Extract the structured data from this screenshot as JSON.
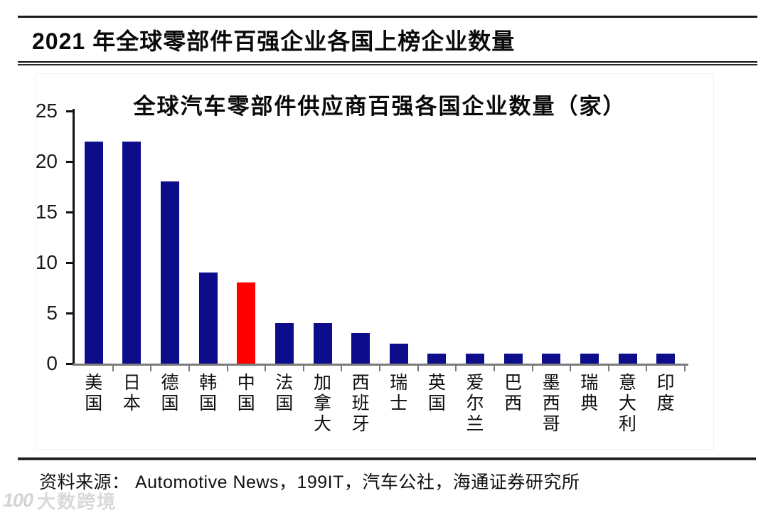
{
  "header": {
    "year": "2021",
    "title": "年全球零部件百强企业各国上榜企业数量"
  },
  "chart_data": {
    "type": "bar",
    "title": "全球汽车零部件供应商百强各国企业数量（家）",
    "categories": [
      "美国",
      "日本",
      "德国",
      "韩国",
      "中国",
      "法国",
      "加拿大",
      "西班牙",
      "瑞士",
      "英国",
      "爱尔兰",
      "巴西",
      "墨西哥",
      "瑞典",
      "意大利",
      "印度"
    ],
    "values": [
      22,
      22,
      18,
      9,
      8,
      4,
      4,
      3,
      2,
      1,
      1,
      1,
      1,
      1,
      1,
      1
    ],
    "highlight_index": 4,
    "highlight_category": "中国",
    "bar_color": "#0d0d8c",
    "highlight_color": "#fe0000",
    "xlabel": "",
    "ylabel": "",
    "ylim": [
      0,
      25
    ],
    "yticks": [
      0,
      5,
      10,
      15,
      20,
      25
    ],
    "grid": false,
    "legend_position": "none"
  },
  "footer": {
    "source": "资料来源： Automotive News，199IT，汽车公社，海通证券研究所"
  },
  "watermark": {
    "logo_text": "100",
    "brand": "大数跨境"
  }
}
